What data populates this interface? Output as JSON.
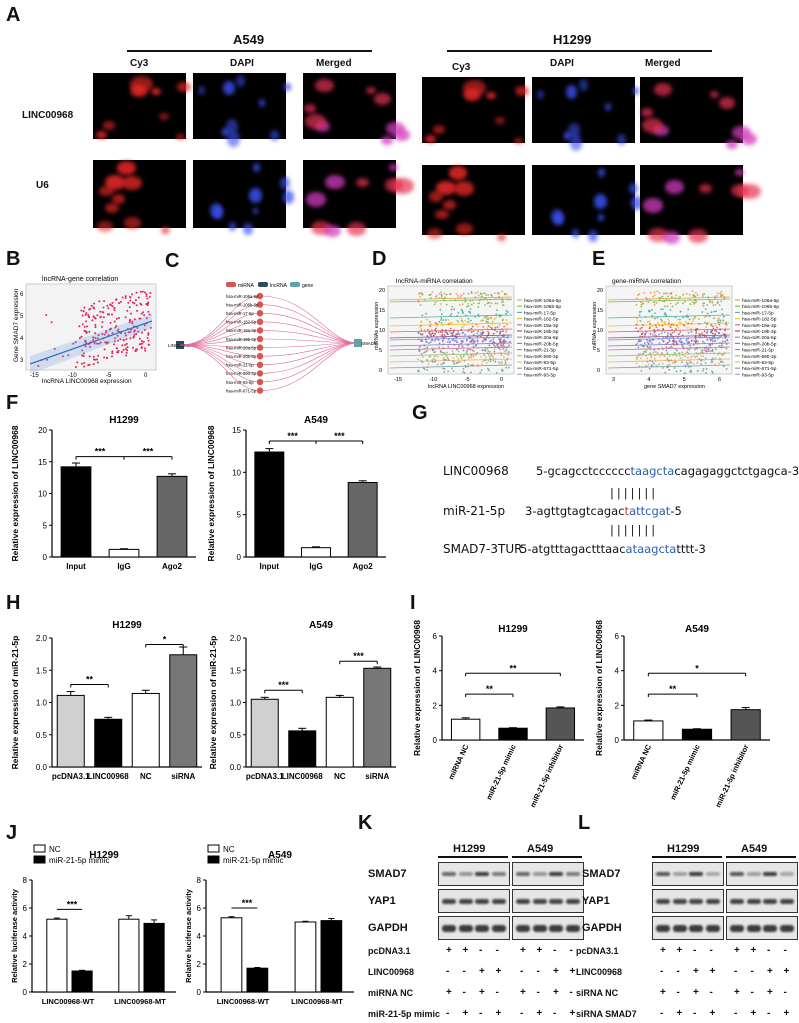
{
  "panels": {
    "A": "A",
    "B": "B",
    "C": "C",
    "D": "D",
    "E": "E",
    "F": "F",
    "G": "G",
    "H": "H",
    "I": "I",
    "J": "J",
    "K": "K",
    "L": "L"
  },
  "panelA": {
    "cell_lines": [
      "A549",
      "H1299"
    ],
    "channels": [
      "Cy3",
      "DAPI",
      "Merged"
    ],
    "rows": [
      "LINC00968",
      "U6"
    ]
  },
  "panelB": {
    "title": "lncRNA-gene correlation",
    "xlabel": "lncRNA LINC00968 expression",
    "ylabel": "Gene SMAD7 expression",
    "xticks": [
      "-15",
      "-10",
      "-5",
      "0"
    ],
    "yticks": [
      "3",
      "4",
      "5",
      "6"
    ]
  },
  "panelC": {
    "legend": [
      "miRNA",
      "lncRNA",
      "gene"
    ],
    "legend_colors": [
      "#d9534f",
      "#2e4a5a",
      "#5aa5a8"
    ],
    "left_node": "LINC00968",
    "right_node": "SMAD7",
    "mirnas": [
      "hsa-miR-106a-5p",
      "hsa-miR-106b-5p",
      "hsa-miR-17-5p",
      "hsa-miR-182-5p",
      "hsa-miR-19a-3p",
      "hsa-miR-19b-3p",
      "hsa-miR-20a-5p",
      "hsa-miR-20b-5p",
      "hsa-miR-21-5p",
      "hsa-miR-590-3p",
      "hsa-miR-93-5p",
      "hsa-miR-671-5p"
    ]
  },
  "panelD": {
    "title": "lncRNA-miRNA correlation",
    "xlabel": "lncRNA LINC00968 expression",
    "ylabel": "miRNAs expression",
    "xticks": [
      "-15",
      "-10",
      "-5",
      "0"
    ],
    "yticks": [
      "0",
      "5",
      "10",
      "15",
      "20"
    ]
  },
  "panelE": {
    "title": "gene-miRNA correlation",
    "xlabel": "gene SMAD7 expression",
    "ylabel": "miRNAs expression",
    "xticks": [
      "3",
      "4",
      "5",
      "6"
    ],
    "yticks": [
      "0",
      "5",
      "10",
      "15",
      "20"
    ]
  },
  "legend_mirnas": [
    "hsa-miR-106a-5p",
    "hsa-miR-106b-5p",
    "hsa-miR-17-5p",
    "hsa-miR-182-5p",
    "hsa-miR-19a-3p",
    "hsa-miR-19b-3p",
    "hsa-miR-20a-5p",
    "hsa-miR-20b-5p",
    "hsa-miR-21-5p",
    "hsa-miR-590-3p",
    "hsa-miR-93-5p",
    "hsa-miR-671-5p",
    "hsa-miR-93-5p"
  ],
  "legend_colors": [
    "#e8a15b",
    "#7dc15a",
    "#56b4a0",
    "#f1c232",
    "#e06666",
    "#a64d79",
    "#6d9eeb",
    "#8e7cc3",
    "#c27ba0",
    "#93c47d",
    "#f6b26b",
    "#76a5af",
    "#b4a7d6"
  ],
  "panelG": {
    "row1_label": "LINC00968",
    "row1_pre": "5-gcagcctcccccc",
    "row1_hl": "taagcta",
    "row1_post": "cagagaggctctgagca-3",
    "pairs": "|||||||",
    "row2_label": "miR-21-5p",
    "row2_pre": "3-agttgtagtcagac",
    "row2_red": "t",
    "row2_hl": "attcgat",
    "row2_post": "-5",
    "row3_label": "SMAD7-3TUR",
    "row3_pre": "5-atgtttagactttaac",
    "row3_hl": "ataagcta",
    "row3_post": "tttt-3"
  },
  "chart_data": [
    {
      "panel": "F",
      "type": "bar",
      "title": "H1299",
      "ylabel": "Relative expression of LINC00968",
      "categories": [
        "Input",
        "IgG",
        "Ago2"
      ],
      "values": [
        14.2,
        1.2,
        12.7
      ],
      "errors": [
        0.6,
        0.1,
        0.4
      ],
      "colors": [
        "#000000",
        "#ffffff",
        "#666666"
      ],
      "ylim": [
        0,
        20
      ],
      "yticks": [
        0,
        5,
        10,
        15,
        20
      ],
      "sig": [
        {
          "from": 0,
          "to": 1,
          "label": "***",
          "y": 15.8
        },
        {
          "from": 1,
          "to": 2,
          "label": "***",
          "y": 15.8
        }
      ]
    },
    {
      "panel": "F",
      "type": "bar",
      "title": "A549",
      "ylabel": "Relative expression of LINC00968",
      "categories": [
        "Input",
        "IgG",
        "Ago2"
      ],
      "values": [
        12.4,
        1.1,
        8.8
      ],
      "errors": [
        0.4,
        0.1,
        0.2
      ],
      "colors": [
        "#000000",
        "#ffffff",
        "#666666"
      ],
      "ylim": [
        0,
        15
      ],
      "yticks": [
        0,
        5,
        10,
        15
      ],
      "sig": [
        {
          "from": 0,
          "to": 1,
          "label": "***",
          "y": 13.7
        },
        {
          "from": 1,
          "to": 2,
          "label": "***",
          "y": 13.7
        }
      ]
    },
    {
      "panel": "H",
      "type": "bar",
      "title": "H1299",
      "ylabel": "Relative expression of miR-21-5p",
      "categories": [
        "pcDNA3.1",
        "LINC00968",
        "NC",
        "siRNA"
      ],
      "values": [
        1.11,
        0.74,
        1.14,
        1.74
      ],
      "errors": [
        0.06,
        0.03,
        0.05,
        0.12
      ],
      "colors": [
        "#d0d0d0",
        "#000000",
        "#ffffff",
        "#777777"
      ],
      "ylim": [
        0,
        2.0
      ],
      "yticks": [
        0.0,
        0.5,
        1.0,
        1.5,
        2.0
      ],
      "sig": [
        {
          "from": 0,
          "to": 1,
          "label": "**",
          "y": 1.28
        },
        {
          "from": 2,
          "to": 3,
          "label": "*",
          "y": 1.9
        }
      ]
    },
    {
      "panel": "H",
      "type": "bar",
      "title": "A549",
      "ylabel": "Relative expression of miR-21-5p",
      "categories": [
        "pcDNA3.1",
        "LINC00968",
        "NC",
        "siRNA"
      ],
      "values": [
        1.05,
        0.56,
        1.08,
        1.53
      ],
      "errors": [
        0.03,
        0.04,
        0.03,
        0.02
      ],
      "colors": [
        "#d0d0d0",
        "#000000",
        "#ffffff",
        "#777777"
      ],
      "ylim": [
        0,
        2.0
      ],
      "yticks": [
        0.0,
        0.5,
        1.0,
        1.5,
        2.0
      ],
      "sig": [
        {
          "from": 0,
          "to": 1,
          "label": "***",
          "y": 1.19
        },
        {
          "from": 2,
          "to": 3,
          "label": "***",
          "y": 1.64
        }
      ]
    },
    {
      "panel": "I",
      "type": "bar",
      "title": "H1299",
      "ylabel": "Relative expression of LINC00968",
      "categories": [
        "miRNA NC",
        "miR-21-5p mimic",
        "miR-21-5p inhibitor"
      ],
      "values": [
        1.2,
        0.68,
        1.85
      ],
      "errors": [
        0.08,
        0.03,
        0.06
      ],
      "colors": [
        "#ffffff",
        "#000000",
        "#555555"
      ],
      "ylim": [
        0,
        6
      ],
      "yticks": [
        0,
        2,
        4,
        6
      ],
      "sig": [
        {
          "from": 0,
          "to": 1,
          "label": "**",
          "y": 2.65
        },
        {
          "from": 0,
          "to": 2,
          "label": "**",
          "y": 3.85
        }
      ]
    },
    {
      "panel": "I",
      "type": "bar",
      "title": "A549",
      "ylabel": "Relative expression of LINC00968",
      "categories": [
        "miRNA NC",
        "miR-21-5p mimic",
        "miR-21-5p inhibitor"
      ],
      "values": [
        1.1,
        0.62,
        1.75
      ],
      "errors": [
        0.05,
        0.03,
        0.12
      ],
      "colors": [
        "#ffffff",
        "#000000",
        "#555555"
      ],
      "ylim": [
        0,
        6
      ],
      "yticks": [
        0,
        2,
        4,
        6
      ],
      "sig": [
        {
          "from": 0,
          "to": 1,
          "label": "**",
          "y": 2.65
        },
        {
          "from": 0,
          "to": 2,
          "label": "*",
          "y": 3.85
        }
      ]
    },
    {
      "panel": "J",
      "type": "bar",
      "title": "H1299",
      "ylabel": "Relative luciferase activity",
      "legend": [
        "NC",
        "miR-21-5p mimic"
      ],
      "categories": [
        "LINC00968-WT",
        "LINC00968-MT"
      ],
      "series": [
        {
          "name": "NC",
          "values": [
            5.2,
            5.2
          ],
          "errors": [
            0.08,
            0.25
          ]
        },
        {
          "name": "miR-21-5p mimic",
          "values": [
            1.5,
            4.9
          ],
          "errors": [
            0.05,
            0.25
          ]
        }
      ],
      "colors": [
        "#ffffff",
        "#000000"
      ],
      "ylim": [
        0,
        8
      ],
      "yticks": [
        0,
        2,
        4,
        6,
        8
      ],
      "sig": [
        {
          "cat": 0,
          "label": "***",
          "y": 5.9
        }
      ]
    },
    {
      "panel": "J",
      "type": "bar",
      "title": "A549",
      "ylabel": "Relative luciferase activity",
      "legend": [
        "NC",
        "miR-21-5p mimic"
      ],
      "categories": [
        "LINC00968-WT",
        "LINC00968-MT"
      ],
      "series": [
        {
          "name": "NC",
          "values": [
            5.3,
            5.0
          ],
          "errors": [
            0.08,
            0.05
          ]
        },
        {
          "name": "miR-21-5p mimic",
          "values": [
            1.7,
            5.1
          ],
          "errors": [
            0.05,
            0.15
          ]
        }
      ],
      "colors": [
        "#ffffff",
        "#000000"
      ],
      "ylim": [
        0,
        8
      ],
      "yticks": [
        0,
        2,
        4,
        6,
        8
      ],
      "sig": [
        {
          "cat": 0,
          "label": "***",
          "y": 6.0
        }
      ]
    }
  ],
  "panelK": {
    "cell_lines": [
      "H1299",
      "A549"
    ],
    "proteins": [
      "SMAD7",
      "YAP1",
      "GAPDH"
    ],
    "conditions": [
      {
        "label": "pcDNA3.1",
        "signs": [
          "+",
          "+",
          "-",
          "-",
          "+",
          "+",
          "-",
          "-"
        ]
      },
      {
        "label": "LINC00968",
        "signs": [
          "-",
          "-",
          "+",
          "+",
          "-",
          "-",
          "+",
          "+"
        ]
      },
      {
        "label": "miRNA NC",
        "signs": [
          "+",
          "-",
          "+",
          "-",
          "+",
          "-",
          "+",
          "-"
        ]
      },
      {
        "label": "miR-21-5p mimic",
        "signs": [
          "-",
          "+",
          "-",
          "+",
          "-",
          "+",
          "-",
          "+"
        ]
      }
    ]
  },
  "panelL": {
    "cell_lines": [
      "H1299",
      "A549"
    ],
    "proteins": [
      "SMAD7",
      "YAP1",
      "GAPDH"
    ],
    "conditions": [
      {
        "label": "pcDNA3.1",
        "signs": [
          "+",
          "+",
          "-",
          "-",
          "+",
          "+",
          "-",
          "-"
        ]
      },
      {
        "label": "LINC00968",
        "signs": [
          "-",
          "-",
          "+",
          "+",
          "-",
          "-",
          "+",
          "+"
        ]
      },
      {
        "label": "siRNA NC",
        "signs": [
          "+",
          "-",
          "+",
          "-",
          "+",
          "-",
          "+",
          "-"
        ]
      },
      {
        "label": "siRNA SMAD7",
        "signs": [
          "-",
          "+",
          "-",
          "+",
          "-",
          "+",
          "-",
          "+"
        ]
      }
    ]
  }
}
